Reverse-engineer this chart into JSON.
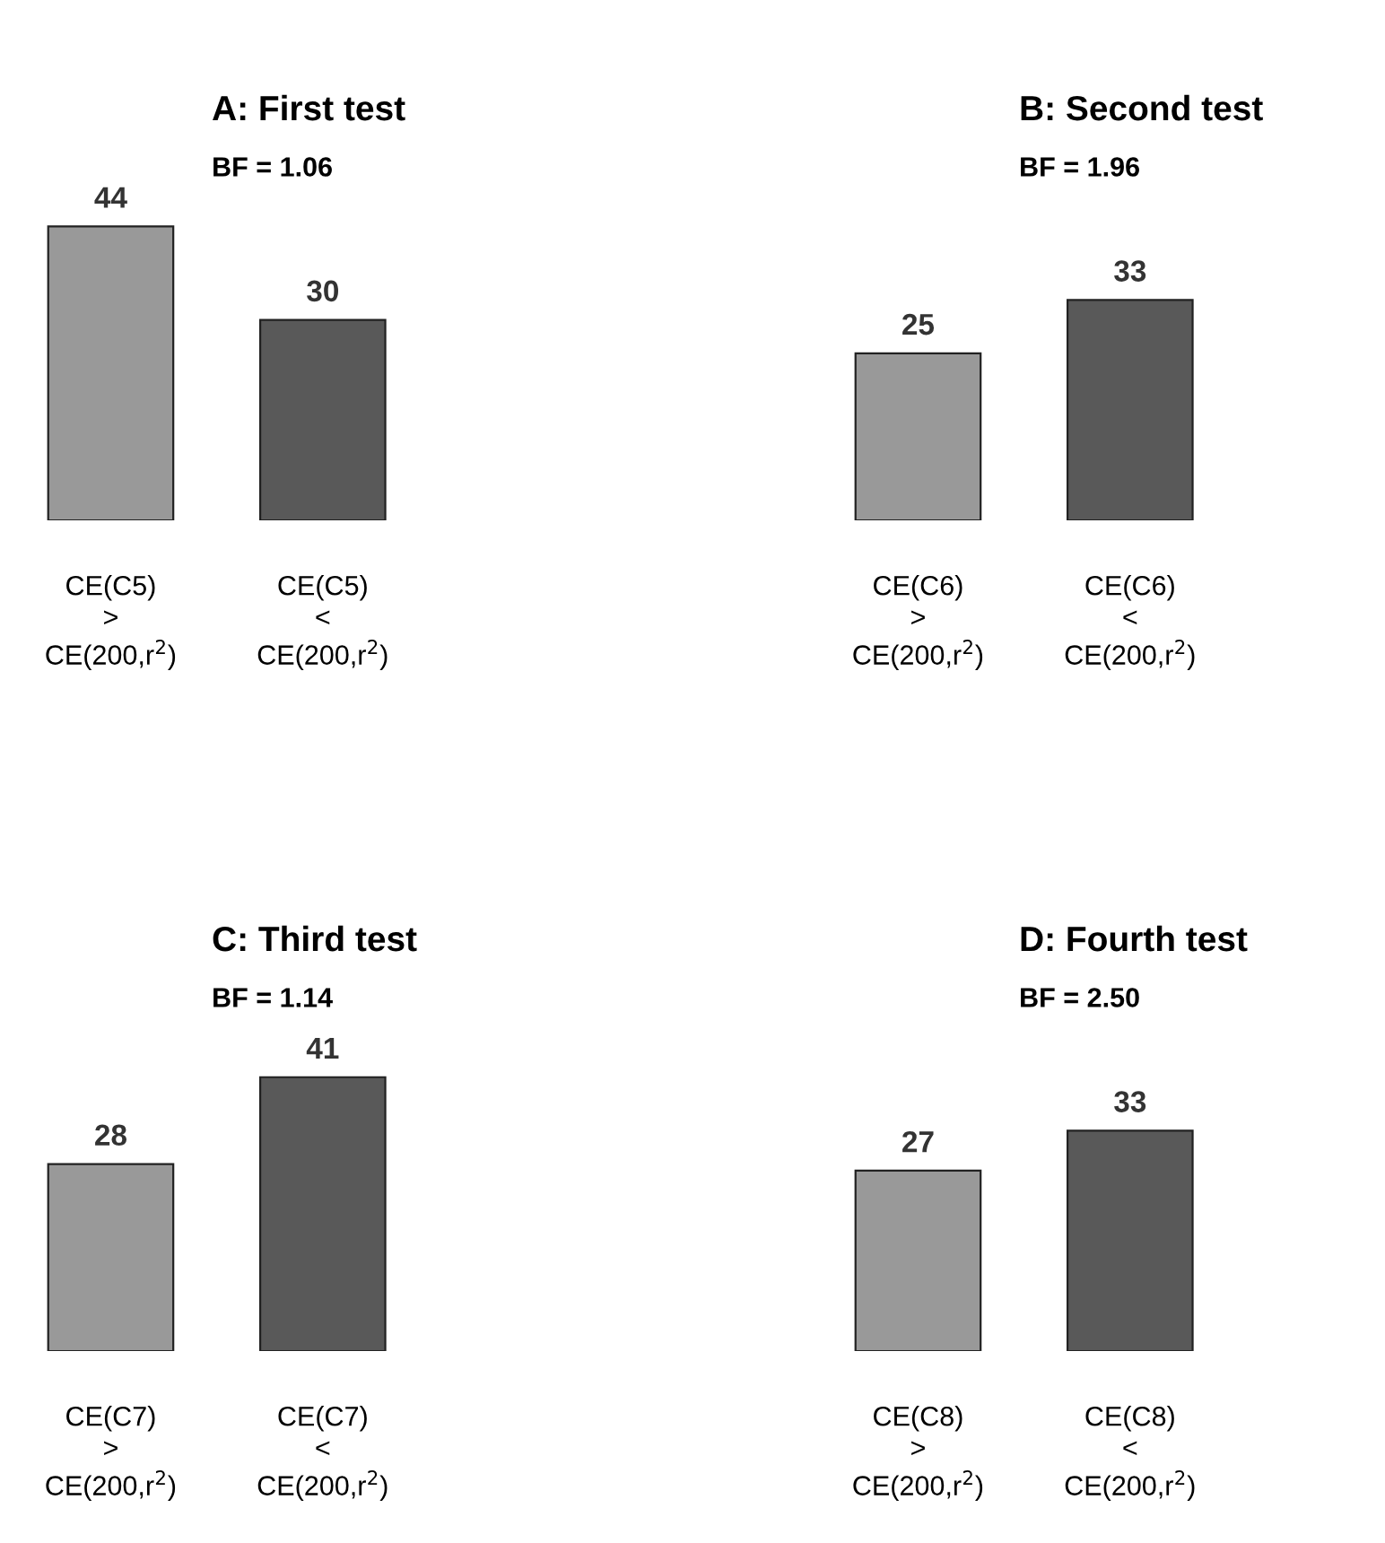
{
  "chart_data": [
    {
      "type": "bar",
      "title": "A: First test",
      "subtitle": "BF = 1.06",
      "categories": [
        "CE(C5)\n>\nCE(200,r$^{2}$)",
        "CE(C5)\n<\nCE(200,r$^{2}$)"
      ],
      "values": [
        44,
        30
      ],
      "colors": [
        "#999999",
        "#595959"
      ],
      "data_labels": true
    },
    {
      "type": "bar",
      "title": "B: Second test",
      "subtitle": "BF = 1.96",
      "categories": [
        "CE(C6)\n>\nCE(200,r$^{2}$)",
        "CE(C6)\n<\nCE(200,r$^{2}$)"
      ],
      "values": [
        25,
        33
      ],
      "colors": [
        "#999999",
        "#595959"
      ],
      "data_labels": true
    },
    {
      "type": "bar",
      "title": "C: Third test",
      "subtitle": "BF = 1.14",
      "categories": [
        "CE(C7)\n>\nCE(200,r$^{2}$)",
        "CE(C7)\n<\nCE(200,r$^{2}$)"
      ],
      "values": [
        28,
        41
      ],
      "colors": [
        "#999999",
        "#595959"
      ],
      "data_labels": true
    },
    {
      "type": "bar",
      "title": "D: Fourth test",
      "subtitle": "BF = 2.50",
      "categories": [
        "CE(C8)\n>\nCE(200,r$^{2}$)",
        "CE(C8)\n<\nCE(200,r$^{2}$)"
      ],
      "values": [
        27,
        33
      ],
      "colors": [
        "#999999",
        "#595959"
      ],
      "data_labels": true
    }
  ]
}
